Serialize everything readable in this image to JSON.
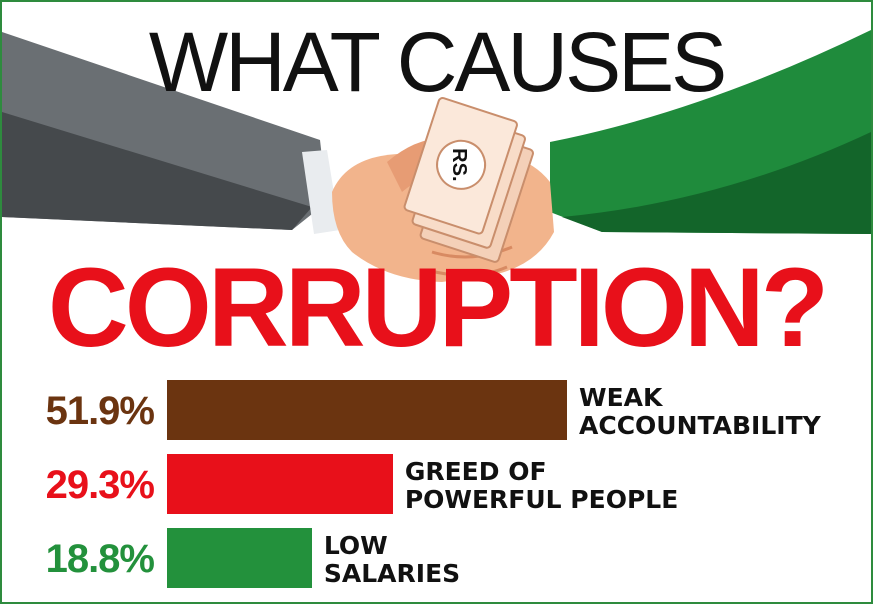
{
  "title_line1": "WHAT CAUSES",
  "title_line2": "CORRUPTION?",
  "money_label": "RS.",
  "colors": {
    "border": "#2e8b3e",
    "title_main": "#e8101a",
    "weak": "#6b3410",
    "greed": "#e8101a",
    "salaries": "#23913c",
    "sleeve_left": "#6a6f73",
    "sleeve_right": "#1f8b3c",
    "skin": "#f2b48c"
  },
  "chart_data": {
    "type": "bar",
    "orientation": "horizontal",
    "categories": [
      "WEAK ACCOUNTABILITY",
      "GREED OF POWERFUL PEOPLE",
      "LOW SALARIES"
    ],
    "category_lines": [
      [
        "WEAK",
        "ACCOUNTABILITY"
      ],
      [
        "GREED OF",
        "POWERFUL PEOPLE"
      ],
      [
        "LOW",
        "SALARIES"
      ]
    ],
    "values": [
      51.9,
      29.3,
      18.8
    ],
    "value_labels": [
      "51.9%",
      "29.3%",
      "18.8%"
    ],
    "value_unit": "%",
    "colors": [
      "#6b3410",
      "#e8101a",
      "#23913c"
    ],
    "xlim": [
      0,
      100
    ],
    "grid": false
  }
}
